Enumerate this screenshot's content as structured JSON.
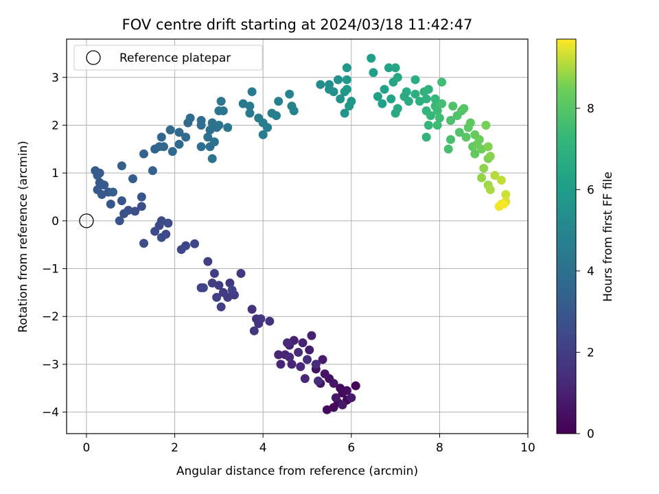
{
  "chart_data": {
    "type": "scatter",
    "title": "FOV centre drift starting at 2024/03/18 11:42:47",
    "xlabel": "Angular distance from reference (arcmin)",
    "ylabel": "Rotation from reference (arcmin)",
    "xlim": [
      -0.45,
      10
    ],
    "ylim": [
      -4.45,
      3.8
    ],
    "xticks": [
      0,
      2,
      4,
      6,
      8,
      10
    ],
    "xtick_labels": [
      "0",
      "2",
      "4",
      "6",
      "8",
      "10"
    ],
    "yticks": [
      -4,
      -3,
      -2,
      -1,
      0,
      1,
      2,
      3
    ],
    "ytick_labels": [
      "−4",
      "−3",
      "−2",
      "−1",
      "0",
      "1",
      "2",
      "3"
    ],
    "grid": true,
    "legend": {
      "placement": "top-left",
      "entries": [
        {
          "label": "Reference platepar",
          "marker": "open-circle",
          "x": 0,
          "y": 0
        }
      ]
    },
    "colorbar": {
      "label": "Hours from first FF file",
      "colormap": "viridis",
      "range": [
        0,
        9.7
      ],
      "ticks": [
        0,
        2,
        4,
        6,
        8
      ],
      "tick_labels": [
        "0",
        "2",
        "4",
        "6",
        "8"
      ]
    },
    "series": [
      {
        "color_by": "hours",
        "points": [
          [
            6.1,
            -3.45,
            0.05
          ],
          [
            5.9,
            -3.75,
            0.1
          ],
          [
            5.8,
            -3.6,
            0.15
          ],
          [
            5.7,
            -3.8,
            0.2
          ],
          [
            5.6,
            -3.9,
            0.25
          ],
          [
            5.45,
            -3.95,
            0.3
          ],
          [
            5.75,
            -3.5,
            0.35
          ],
          [
            5.9,
            -3.55,
            0.4
          ],
          [
            5.5,
            -3.3,
            0.45
          ],
          [
            5.3,
            -3.4,
            0.5
          ],
          [
            5.2,
            -3.1,
            0.55
          ],
          [
            5.4,
            -3.2,
            0.6
          ],
          [
            5.6,
            -3.4,
            0.65
          ],
          [
            5.65,
            -3.7,
            0.7
          ],
          [
            5.8,
            -3.85,
            0.75
          ],
          [
            6.0,
            -3.7,
            0.8
          ],
          [
            5.35,
            -2.9,
            0.85
          ],
          [
            5.05,
            -2.7,
            0.9
          ],
          [
            5.1,
            -2.4,
            0.95
          ],
          [
            4.9,
            -2.55,
            1.0
          ],
          [
            4.7,
            -2.5,
            1.02
          ],
          [
            4.6,
            -2.6,
            1.05
          ],
          [
            4.5,
            -2.8,
            1.08
          ],
          [
            4.35,
            -2.8,
            1.1
          ],
          [
            4.4,
            -3.0,
            1.13
          ],
          [
            4.65,
            -3.0,
            1.16
          ],
          [
            4.85,
            -3.05,
            1.2
          ],
          [
            4.95,
            -3.3,
            1.24
          ],
          [
            5.2,
            -3.0,
            1.28
          ],
          [
            4.6,
            -2.85,
            1.3
          ],
          [
            4.55,
            -2.55,
            1.33
          ],
          [
            4.8,
            -2.75,
            1.36
          ],
          [
            5.0,
            -2.9,
            1.4
          ],
          [
            5.25,
            -3.35,
            1.45
          ],
          [
            3.85,
            -2.05,
            1.55
          ],
          [
            3.75,
            -1.85,
            1.6
          ],
          [
            3.9,
            -2.15,
            1.63
          ],
          [
            4.15,
            -2.1,
            1.66
          ],
          [
            3.8,
            -2.3,
            1.7
          ],
          [
            3.95,
            -2.05,
            1.72
          ],
          [
            3.5,
            -1.1,
            1.8
          ],
          [
            3.25,
            -1.3,
            1.85
          ],
          [
            3.1,
            -1.5,
            1.9
          ],
          [
            3.2,
            -1.6,
            1.92
          ],
          [
            3.35,
            -1.55,
            1.95
          ],
          [
            3.0,
            -1.35,
            2.0
          ],
          [
            2.85,
            -1.3,
            2.02
          ],
          [
            2.9,
            -1.1,
            2.05
          ],
          [
            3.05,
            -1.8,
            2.08
          ],
          [
            2.75,
            -0.85,
            2.1
          ],
          [
            2.6,
            -1.4,
            2.15
          ],
          [
            2.95,
            -1.6,
            2.18
          ],
          [
            3.3,
            -1.45,
            2.2
          ],
          [
            2.65,
            -1.4,
            2.22
          ],
          [
            2.45,
            -0.48,
            2.3
          ],
          [
            2.25,
            -0.52,
            2.33
          ],
          [
            2.15,
            -0.6,
            2.36
          ],
          [
            1.8,
            -0.28,
            2.4
          ],
          [
            1.65,
            -0.1,
            2.43
          ],
          [
            1.55,
            -0.22,
            2.46
          ],
          [
            1.7,
            0.0,
            2.5
          ],
          [
            1.85,
            -0.05,
            2.53
          ],
          [
            1.7,
            -0.35,
            2.56
          ],
          [
            1.3,
            -0.47,
            2.58
          ],
          [
            1.25,
            0.3,
            2.65
          ],
          [
            1.1,
            0.2,
            2.7
          ],
          [
            0.95,
            0.22,
            2.74
          ],
          [
            0.85,
            0.15,
            2.78
          ],
          [
            0.75,
            0.0,
            2.82
          ],
          [
            1.25,
            0.5,
            2.86
          ],
          [
            0.8,
            0.42,
            2.9
          ],
          [
            0.55,
            0.35,
            2.94
          ],
          [
            0.35,
            0.55,
            2.98
          ],
          [
            0.5,
            0.6,
            3.02
          ],
          [
            0.25,
            0.65,
            3.06
          ],
          [
            0.3,
            0.8,
            3.1
          ],
          [
            0.4,
            0.75,
            3.13
          ],
          [
            0.25,
            0.95,
            3.16
          ],
          [
            0.3,
            1.0,
            3.19
          ],
          [
            0.2,
            1.05,
            3.22
          ],
          [
            1.05,
            0.88,
            3.26
          ],
          [
            0.8,
            1.15,
            3.3
          ],
          [
            0.6,
            0.6,
            3.34
          ],
          [
            1.5,
            1.05,
            3.4
          ],
          [
            1.3,
            1.4,
            3.45
          ],
          [
            1.55,
            1.5,
            3.5
          ],
          [
            1.65,
            1.55,
            3.55
          ],
          [
            1.75,
            1.55,
            3.58
          ],
          [
            1.7,
            1.75,
            3.6
          ],
          [
            1.9,
            1.9,
            3.63
          ],
          [
            1.95,
            1.45,
            3.66
          ],
          [
            2.1,
            1.6,
            3.7
          ],
          [
            2.1,
            1.85,
            3.73
          ],
          [
            2.25,
            1.75,
            3.76
          ],
          [
            2.3,
            2.05,
            3.8
          ],
          [
            2.35,
            2.15,
            3.83
          ],
          [
            2.6,
            2.0,
            3.86
          ],
          [
            2.6,
            2.1,
            3.9
          ],
          [
            2.6,
            1.55,
            3.93
          ],
          [
            2.8,
            1.55,
            3.96
          ],
          [
            2.75,
            1.75,
            4.0
          ],
          [
            2.8,
            1.9,
            4.03
          ],
          [
            2.95,
            1.95,
            4.06
          ],
          [
            2.9,
            1.65,
            4.1
          ],
          [
            3.0,
            2.0,
            4.13
          ],
          [
            2.85,
            1.3,
            4.16
          ],
          [
            2.85,
            2.05,
            4.2
          ],
          [
            3.05,
            2.5,
            4.23
          ],
          [
            3.0,
            2.3,
            4.26
          ],
          [
            3.1,
            2.3,
            4.3
          ],
          [
            3.2,
            1.95,
            4.33
          ],
          [
            3.55,
            2.45,
            4.4
          ],
          [
            3.7,
            2.4,
            4.44
          ],
          [
            3.7,
            2.25,
            4.48
          ],
          [
            3.75,
            2.7,
            4.52
          ],
          [
            3.9,
            2.15,
            4.56
          ],
          [
            4.0,
            2.05,
            4.6
          ],
          [
            4.0,
            1.8,
            4.64
          ],
          [
            4.1,
            1.95,
            4.68
          ],
          [
            4.2,
            2.25,
            4.72
          ],
          [
            4.3,
            2.2,
            4.76
          ],
          [
            4.35,
            2.5,
            4.8
          ],
          [
            4.6,
            2.65,
            4.85
          ],
          [
            4.65,
            2.4,
            4.9
          ],
          [
            4.7,
            2.3,
            4.95
          ],
          [
            5.3,
            2.85,
            5.3
          ],
          [
            5.5,
            2.85,
            5.35
          ],
          [
            5.5,
            2.75,
            5.4
          ],
          [
            5.6,
            2.7,
            5.45
          ],
          [
            5.7,
            2.95,
            5.5
          ],
          [
            5.75,
            2.55,
            5.55
          ],
          [
            5.85,
            2.7,
            5.6
          ],
          [
            5.85,
            2.25,
            5.65
          ],
          [
            5.95,
            2.4,
            5.7
          ],
          [
            6.0,
            2.5,
            5.75
          ],
          [
            5.9,
            3.2,
            5.8
          ],
          [
            5.9,
            2.95,
            5.85
          ],
          [
            5.9,
            2.75,
            5.88
          ],
          [
            6.45,
            3.4,
            6.05
          ],
          [
            6.5,
            3.1,
            6.1
          ],
          [
            6.6,
            2.6,
            6.15
          ],
          [
            6.7,
            2.45,
            6.2
          ],
          [
            6.75,
            2.75,
            6.25
          ],
          [
            6.85,
            3.2,
            6.3
          ],
          [
            6.9,
            2.55,
            6.35
          ],
          [
            6.95,
            2.9,
            6.4
          ],
          [
            7.0,
            3.2,
            6.45
          ],
          [
            7.05,
            3.0,
            6.5
          ],
          [
            7.0,
            2.25,
            6.55
          ],
          [
            7.05,
            2.35,
            6.6
          ],
          [
            7.2,
            2.6,
            6.65
          ],
          [
            7.25,
            2.7,
            6.7
          ],
          [
            7.3,
            2.5,
            6.75
          ],
          [
            7.45,
            2.95,
            6.8
          ],
          [
            7.45,
            2.65,
            6.85
          ],
          [
            7.55,
            2.5,
            6.9
          ],
          [
            7.65,
            2.7,
            6.95
          ],
          [
            7.7,
            2.55,
            7.0
          ],
          [
            7.75,
            2.75,
            7.05
          ],
          [
            7.7,
            1.75,
            7.1
          ],
          [
            7.7,
            2.3,
            7.15
          ],
          [
            7.75,
            2.0,
            7.2
          ],
          [
            7.8,
            2.2,
            7.25
          ],
          [
            7.9,
            2.55,
            7.3
          ],
          [
            7.9,
            2.4,
            7.35
          ],
          [
            7.95,
            2.3,
            7.4
          ],
          [
            7.95,
            2.0,
            7.45
          ],
          [
            8.0,
            2.15,
            7.5
          ],
          [
            8.05,
            2.9,
            7.55
          ],
          [
            8.05,
            2.45,
            7.6
          ],
          [
            8.2,
            1.5,
            7.65
          ],
          [
            8.25,
            1.7,
            7.7
          ],
          [
            8.25,
            2.1,
            7.75
          ],
          [
            8.3,
            2.4,
            7.8
          ],
          [
            8.4,
            2.2,
            7.85
          ],
          [
            8.45,
            1.85,
            7.9
          ],
          [
            8.5,
            2.3,
            7.95
          ],
          [
            8.55,
            2.35,
            8.0
          ],
          [
            8.6,
            1.75,
            8.05
          ],
          [
            8.65,
            1.95,
            8.1
          ],
          [
            8.7,
            2.05,
            8.15
          ],
          [
            8.75,
            1.55,
            8.2
          ],
          [
            8.8,
            1.4,
            8.25
          ],
          [
            8.8,
            1.8,
            8.3
          ],
          [
            8.85,
            1.6,
            8.35
          ],
          [
            8.9,
            1.7,
            8.4
          ],
          [
            8.95,
            1.5,
            8.45
          ],
          [
            9.05,
            2.0,
            8.55
          ],
          [
            9.1,
            1.3,
            8.6
          ],
          [
            9.1,
            1.55,
            8.65
          ],
          [
            9.15,
            1.35,
            8.7
          ],
          [
            9.0,
            1.1,
            8.75
          ],
          [
            8.95,
            0.9,
            8.8
          ],
          [
            9.1,
            0.75,
            8.9
          ],
          [
            9.15,
            0.65,
            9.0
          ],
          [
            9.25,
            0.95,
            9.1
          ],
          [
            9.4,
            0.85,
            9.2
          ],
          [
            9.5,
            0.55,
            9.3
          ],
          [
            9.5,
            0.4,
            9.4
          ],
          [
            9.4,
            0.35,
            9.5
          ],
          [
            9.35,
            0.3,
            9.6
          ],
          [
            9.45,
            0.35,
            9.65
          ]
        ]
      }
    ]
  }
}
